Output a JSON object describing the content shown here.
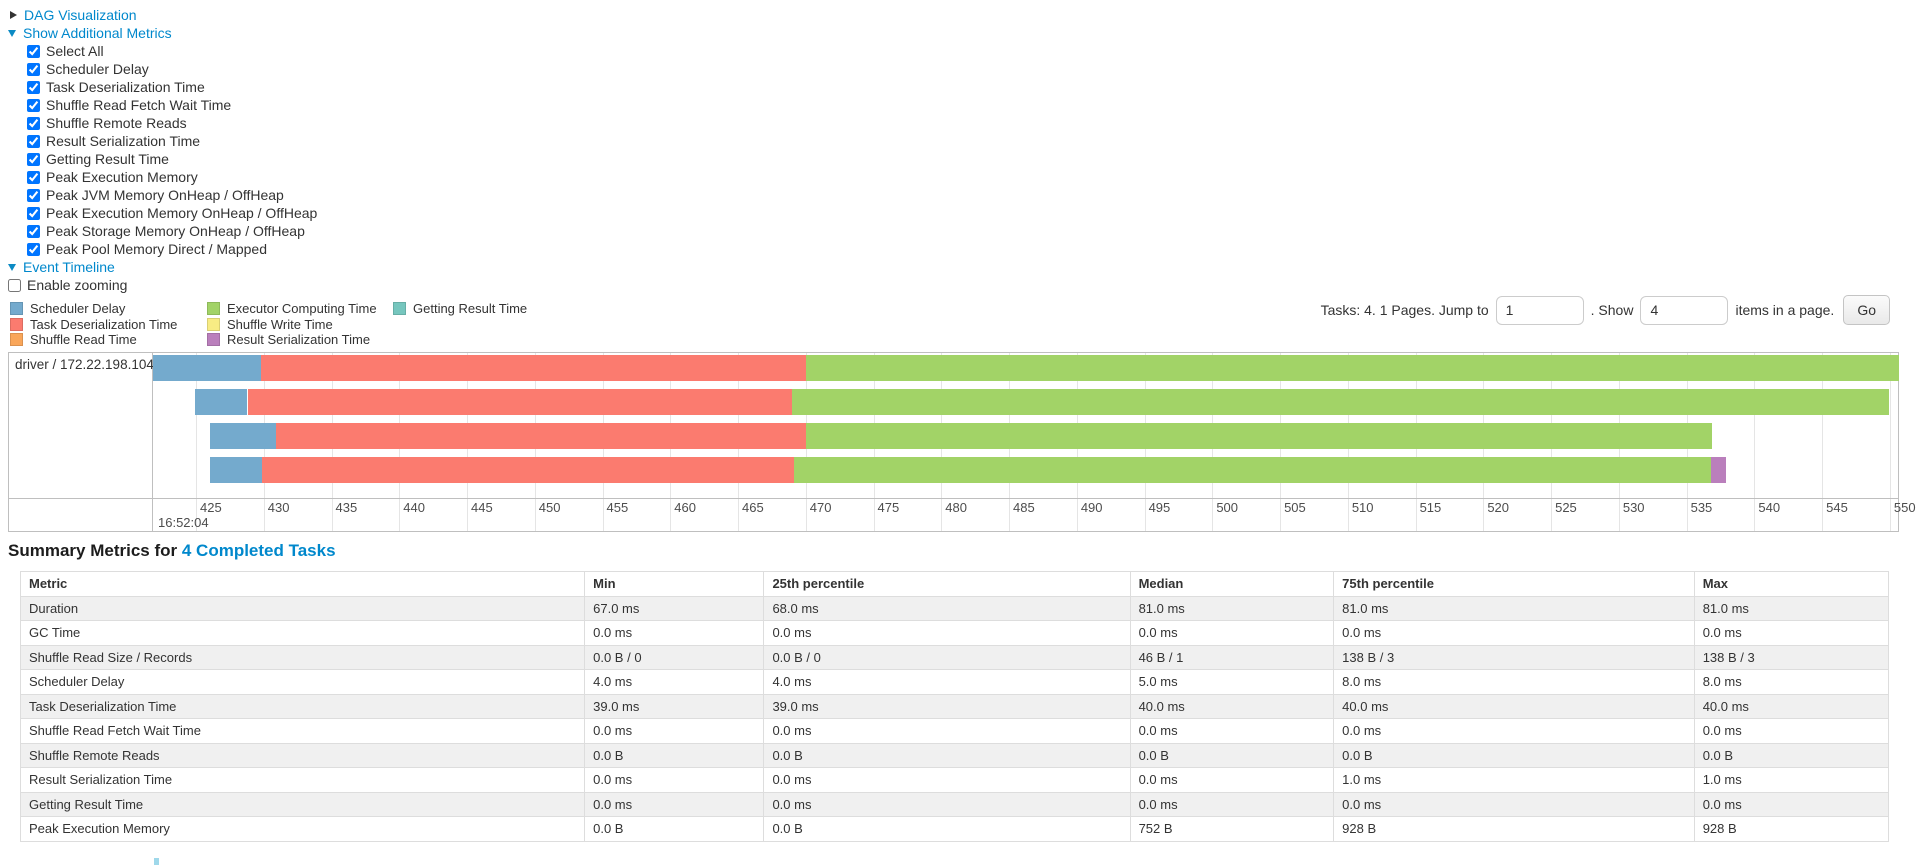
{
  "controls": {
    "dag": {
      "label": "DAG Visualization",
      "state": "collapsed"
    },
    "metrics_toggle": {
      "label": "Show Additional Metrics",
      "state": "expanded"
    },
    "metric_options": [
      {
        "label": "Select All",
        "checked": true
      },
      {
        "label": "Scheduler Delay",
        "checked": true
      },
      {
        "label": "Task Deserialization Time",
        "checked": true
      },
      {
        "label": "Shuffle Read Fetch Wait Time",
        "checked": true
      },
      {
        "label": "Shuffle Remote Reads",
        "checked": true
      },
      {
        "label": "Result Serialization Time",
        "checked": true
      },
      {
        "label": "Getting Result Time",
        "checked": true
      },
      {
        "label": "Peak Execution Memory",
        "checked": true
      },
      {
        "label": "Peak JVM Memory OnHeap / OffHeap",
        "checked": true
      },
      {
        "label": "Peak Execution Memory OnHeap / OffHeap",
        "checked": true
      },
      {
        "label": "Peak Storage Memory OnHeap / OffHeap",
        "checked": true
      },
      {
        "label": "Peak Pool Memory Direct / Mapped",
        "checked": true
      }
    ],
    "event_timeline": {
      "label": "Event Timeline",
      "state": "expanded"
    },
    "enable_zooming": {
      "label": "Enable zooming",
      "checked": false
    }
  },
  "legend": {
    "columns": [
      [
        {
          "label": "Scheduler Delay",
          "color": "#74AACD"
        },
        {
          "label": "Task Deserialization Time",
          "color": "#FB7B6F"
        },
        {
          "label": "Shuffle Read Time",
          "color": "#F9A65A"
        }
      ],
      [
        {
          "label": "Executor Computing Time",
          "color": "#A2D367"
        },
        {
          "label": "Shuffle Write Time",
          "color": "#F8EC84"
        },
        {
          "label": "Result Serialization Time",
          "color": "#BA7FBC"
        }
      ],
      [
        {
          "label": "Getting Result Time",
          "color": "#76C6BE"
        }
      ]
    ]
  },
  "pagination": {
    "prefix": "Tasks: 4. 1 Pages. Jump to",
    "jump_value": "1",
    "middle": ". Show",
    "show_value": "4",
    "suffix": "items in a page.",
    "go_label": "Go"
  },
  "chart_data": {
    "type": "timeline",
    "group_label": "driver / 172.22.198.104",
    "axis": {
      "min": 421.9,
      "max": 550.6,
      "ticks": [
        425,
        430,
        435,
        440,
        445,
        450,
        455,
        460,
        465,
        470,
        475,
        480,
        485,
        490,
        495,
        500,
        505,
        510,
        515,
        520,
        525,
        530,
        535,
        540,
        545,
        550
      ],
      "major_label": "16:52:04",
      "unit": "ms (seconds within 16:52:04)"
    },
    "colors": {
      "scheduler-delay": "#74AACD",
      "task-deserialization": "#FB7B6F",
      "shuffle-read": "#F9A65A",
      "executor-computing": "#A2D367",
      "shuffle-write": "#F8EC84",
      "result-serialization": "#BA7FBC",
      "getting-result": "#76C6BE"
    },
    "bars": [
      {
        "segments": [
          {
            "metric": "scheduler-delay",
            "start": 421.8,
            "end": 429.8
          },
          {
            "metric": "task-deserialization",
            "start": 429.8,
            "end": 470.0
          },
          {
            "metric": "executor-computing",
            "start": 470.0,
            "end": 550.7
          }
        ]
      },
      {
        "segments": [
          {
            "metric": "scheduler-delay",
            "start": 424.9,
            "end": 428.8
          },
          {
            "metric": "task-deserialization",
            "start": 428.8,
            "end": 469.0
          },
          {
            "metric": "executor-computing",
            "start": 469.0,
            "end": 549.9
          }
        ]
      },
      {
        "segments": [
          {
            "metric": "scheduler-delay",
            "start": 426.0,
            "end": 430.9
          },
          {
            "metric": "task-deserialization",
            "start": 430.9,
            "end": 470.0
          },
          {
            "metric": "executor-computing",
            "start": 470.0,
            "end": 536.9
          }
        ]
      },
      {
        "segments": [
          {
            "metric": "scheduler-delay",
            "start": 426.0,
            "end": 429.9
          },
          {
            "metric": "task-deserialization",
            "start": 429.9,
            "end": 469.1
          },
          {
            "metric": "executor-computing",
            "start": 469.1,
            "end": 536.8
          },
          {
            "metric": "result-serialization",
            "start": 536.8,
            "end": 537.9
          }
        ]
      }
    ]
  },
  "summary": {
    "title_prefix": "Summary Metrics for",
    "title_link": "4 Completed Tasks",
    "headers": [
      "Metric",
      "Min",
      "25th percentile",
      "Median",
      "75th percentile",
      "Max"
    ],
    "rows": [
      {
        "metric": "Duration",
        "values": [
          "67.0 ms",
          "68.0 ms",
          "81.0 ms",
          "81.0 ms",
          "81.0 ms"
        ]
      },
      {
        "metric": "GC Time",
        "values": [
          "0.0 ms",
          "0.0 ms",
          "0.0 ms",
          "0.0 ms",
          "0.0 ms"
        ]
      },
      {
        "metric": "Shuffle Read Size / Records",
        "values": [
          "0.0 B / 0",
          "0.0 B / 0",
          "46 B / 1",
          "138 B / 3",
          "138 B / 3"
        ]
      },
      {
        "metric": "Scheduler Delay",
        "values": [
          "4.0 ms",
          "4.0 ms",
          "5.0 ms",
          "8.0 ms",
          "8.0 ms"
        ]
      },
      {
        "metric": "Task Deserialization Time",
        "values": [
          "39.0 ms",
          "39.0 ms",
          "40.0 ms",
          "40.0 ms",
          "40.0 ms"
        ]
      },
      {
        "metric": "Shuffle Read Fetch Wait Time",
        "values": [
          "0.0 ms",
          "0.0 ms",
          "0.0 ms",
          "0.0 ms",
          "0.0 ms"
        ]
      },
      {
        "metric": "Shuffle Remote Reads",
        "values": [
          "0.0 B",
          "0.0 B",
          "0.0 B",
          "0.0 B",
          "0.0 B"
        ]
      },
      {
        "metric": "Result Serialization Time",
        "values": [
          "0.0 ms",
          "0.0 ms",
          "0.0 ms",
          "1.0 ms",
          "1.0 ms"
        ]
      },
      {
        "metric": "Getting Result Time",
        "values": [
          "0.0 ms",
          "0.0 ms",
          "0.0 ms",
          "0.0 ms",
          "0.0 ms"
        ]
      },
      {
        "metric": "Peak Execution Memory",
        "values": [
          "0.0 B",
          "0.0 B",
          "752 B",
          "928 B",
          "928 B"
        ]
      }
    ]
  }
}
